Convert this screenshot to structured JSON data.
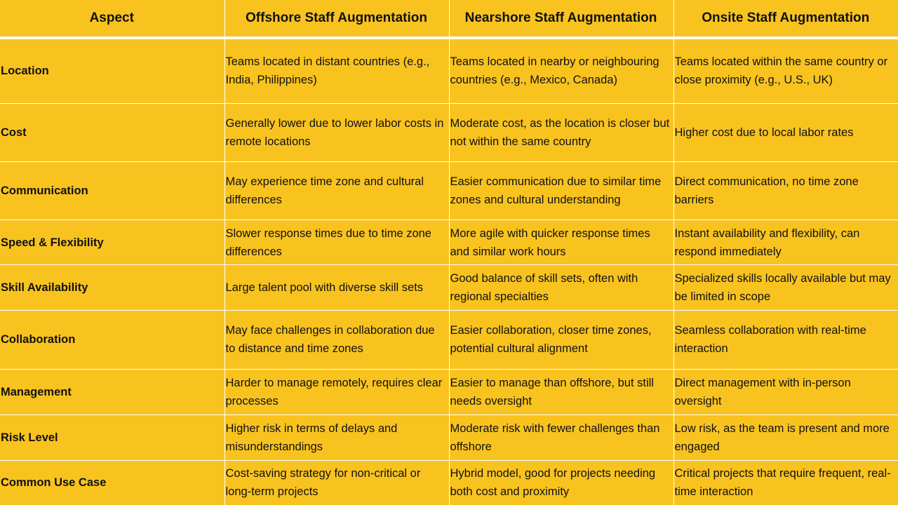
{
  "table": {
    "headers": [
      "Aspect",
      "Offshore Staff Augmentation",
      "Nearshore Staff Augmentation",
      "Onsite Staff Augmentation"
    ],
    "rows": [
      {
        "aspect": "Location",
        "offshore": "Teams located in distant countries (e.g., India, Philippines)",
        "nearshore": "Teams located in nearby or neighbouring countries (e.g., Mexico, Canada)",
        "onsite": "Teams located within the same country or close proximity (e.g., U.S., UK)"
      },
      {
        "aspect": "Cost",
        "offshore": "Generally lower due to lower labor costs in remote locations",
        "nearshore": "Moderate cost, as the location is closer but not within the same country",
        "onsite": "Higher cost due to local labor rates"
      },
      {
        "aspect": "Communication",
        "offshore": "May experience time zone and cultural differences",
        "nearshore": "Easier communication due to similar time zones and cultural understanding",
        "onsite": "Direct communication, no time zone barriers"
      },
      {
        "aspect": "Speed & Flexibility",
        "offshore": "Slower response times due to time zone differences",
        "nearshore": "More agile with quicker response times and similar work hours",
        "onsite": "Instant availability and flexibility, can respond immediately"
      },
      {
        "aspect": "Skill Availability",
        "offshore": "Large talent pool with diverse skill sets",
        "nearshore": "Good balance of skill sets, often with regional specialties",
        "onsite": "Specialized skills locally available but may be limited in scope"
      },
      {
        "aspect": "Collaboration",
        "offshore": "May face challenges in collaboration due to distance and time zones",
        "nearshore": "Easier collaboration, closer time zones, potential cultural alignment",
        "onsite": "Seamless collaboration with real-time interaction"
      },
      {
        "aspect": "Management",
        "offshore": "Harder to manage remotely, requires clear processes",
        "nearshore": "Easier to manage than offshore, but still needs oversight",
        "onsite": "Direct management with in-person oversight"
      },
      {
        "aspect": "Risk Level",
        "offshore": "Higher risk in terms of delays and misunderstandings",
        "nearshore": "Moderate risk with fewer challenges than offshore",
        "onsite": "Low risk, as the team is present and more engaged"
      },
      {
        "aspect": "Common Use Case",
        "offshore": "Cost-saving strategy for non-critical or long-term projects",
        "nearshore": "Hybrid model, good for projects needing both cost and proximity",
        "onsite": "Critical projects that require frequent, real-time interaction"
      }
    ]
  },
  "colors": {
    "cell_fill": "#F9C31F",
    "grid_lines": "#FFFFFF",
    "text": "#111111"
  }
}
